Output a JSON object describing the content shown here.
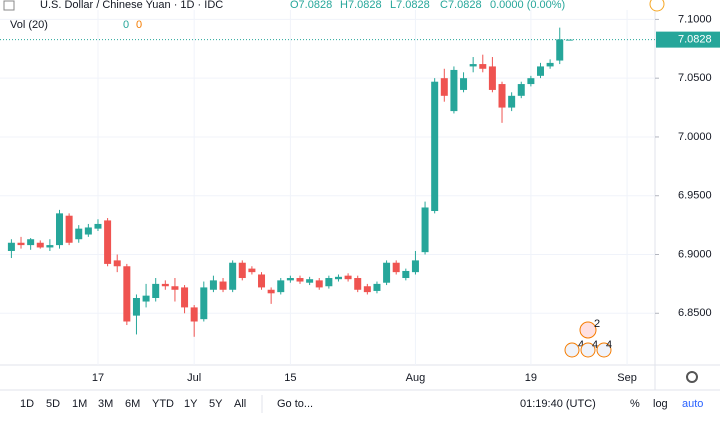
{
  "header": {
    "symbol": "U.S. Dollar / Chinese Yuan · 1D · IDC",
    "open": "O7.0828",
    "high": "H7.0828",
    "low": "L7.0828",
    "close": "C7.0828",
    "change": "0.0000 (0.00%)",
    "volume": "Vol (20)",
    "vol_a": "0",
    "vol_b": "0"
  },
  "chart_data": {
    "type": "candlestick",
    "categories": [
      null,
      null,
      null,
      null,
      null,
      null,
      null,
      null,
      null,
      "17",
      null,
      null,
      null,
      null,
      null,
      null,
      null,
      null,
      null,
      "Jul",
      null,
      null,
      null,
      null,
      null,
      null,
      null,
      null,
      null,
      "15",
      null,
      null,
      null,
      null,
      null,
      null,
      null,
      null,
      null,
      null,
      null,
      null,
      "Aug",
      null,
      null,
      null,
      null,
      null,
      null,
      null,
      null,
      null,
      null,
      null,
      "19",
      null,
      null,
      null,
      null,
      null,
      null,
      null,
      null,
      null,
      "Sep",
      null
    ],
    "open": [
      6.903,
      6.91,
      6.908,
      6.91,
      6.906,
      6.908,
      6.933,
      6.913,
      6.917,
      6.922,
      6.929,
      6.895,
      6.89,
      6.848,
      6.86,
      6.863,
      6.875,
      6.873,
      6.872,
      6.855,
      6.845,
      6.87,
      6.877,
      6.87,
      6.893,
      6.888,
      6.883,
      6.87,
      6.868,
      6.878,
      6.88,
      6.876,
      6.878,
      6.873,
      6.879,
      6.882,
      6.88,
      6.873,
      6.869,
      6.876,
      6.893,
      6.88,
      6.885,
      6.902,
      6.937,
      7.05,
      7.022,
      7.04,
      7.06,
      7.062,
      7.06,
      7.045,
      7.025,
      7.035,
      7.045,
      7.052,
      7.06,
      7.065,
      7.0828,
      null,
      null,
      null,
      null,
      null,
      null,
      null
    ],
    "high": [
      6.913,
      6.915,
      6.914,
      6.912,
      6.913,
      6.938,
      6.935,
      6.925,
      6.926,
      6.93,
      6.931,
      6.9,
      6.892,
      6.866,
      6.875,
      6.88,
      6.878,
      6.88,
      6.874,
      6.857,
      6.877,
      6.882,
      6.88,
      6.895,
      6.895,
      6.89,
      6.885,
      6.872,
      6.88,
      6.882,
      6.882,
      6.881,
      6.88,
      6.882,
      6.883,
      6.884,
      6.882,
      6.875,
      6.877,
      6.895,
      6.895,
      6.888,
      6.903,
      6.945,
      7.05,
      7.058,
      7.06,
      7.055,
      7.068,
      7.07,
      7.068,
      7.047,
      7.038,
      7.047,
      7.052,
      7.063,
      7.066,
      7.093,
      7.0828,
      null,
      null,
      null,
      null,
      null,
      null,
      null
    ],
    "low": [
      6.897,
      6.905,
      6.904,
      6.905,
      6.903,
      6.905,
      6.908,
      6.91,
      6.915,
      6.92,
      6.89,
      6.885,
      6.84,
      6.832,
      6.855,
      6.86,
      6.87,
      6.86,
      6.85,
      6.83,
      6.843,
      6.868,
      6.868,
      6.868,
      6.878,
      6.883,
      6.87,
      6.858,
      6.866,
      6.876,
      6.875,
      6.874,
      6.87,
      6.871,
      6.877,
      6.877,
      6.868,
      6.866,
      6.867,
      6.874,
      6.883,
      6.878,
      6.883,
      6.9,
      6.935,
      7.03,
      7.02,
      7.038,
      7.055,
      7.055,
      7.038,
      7.012,
      7.022,
      7.033,
      7.043,
      7.05,
      7.058,
      7.062,
      7.0828,
      null,
      null,
      null,
      null,
      null,
      null,
      null
    ],
    "close": [
      6.91,
      6.908,
      6.913,
      6.906,
      6.908,
      6.935,
      6.91,
      6.922,
      6.923,
      6.926,
      6.892,
      6.89,
      6.843,
      6.863,
      6.865,
      6.875,
      6.873,
      6.87,
      6.855,
      6.843,
      6.872,
      6.878,
      6.87,
      6.893,
      6.88,
      6.885,
      6.872,
      6.867,
      6.878,
      6.88,
      6.877,
      6.879,
      6.872,
      6.88,
      6.881,
      6.879,
      6.87,
      6.868,
      6.875,
      6.893,
      6.885,
      6.886,
      6.895,
      6.94,
      7.047,
      7.035,
      7.057,
      7.05,
      7.062,
      7.058,
      7.04,
      7.025,
      7.035,
      7.045,
      7.05,
      7.06,
      7.063,
      7.083,
      7.0828,
      null,
      null,
      null,
      null,
      null,
      null,
      null
    ],
    "ylim": [
      6.806,
      7.108
    ],
    "yticks": [
      {
        "value": 7.1,
        "label": "7.1000"
      },
      {
        "value": 7.05,
        "label": "7.0500"
      },
      {
        "value": 7.0,
        "label": "7.0000"
      },
      {
        "value": 6.95,
        "label": "6.9500"
      },
      {
        "value": 6.9,
        "label": "6.9000"
      },
      {
        "value": 6.85,
        "label": "6.8500"
      }
    ],
    "last_price": {
      "value": 7.0828,
      "label": "7.0828"
    },
    "up_color": "#26a69a",
    "down_color": "#ef5350",
    "grid": true,
    "events": [
      "2",
      "4",
      "4",
      "4"
    ]
  },
  "toolbar": {
    "ranges": [
      "1D",
      "5D",
      "1M",
      "3M",
      "6M",
      "YTD",
      "1Y",
      "5Y",
      "All"
    ],
    "goto": "Go to...",
    "clock": "01:19:40 (UTC)",
    "percent": "%",
    "log": "log",
    "auto": "auto"
  }
}
